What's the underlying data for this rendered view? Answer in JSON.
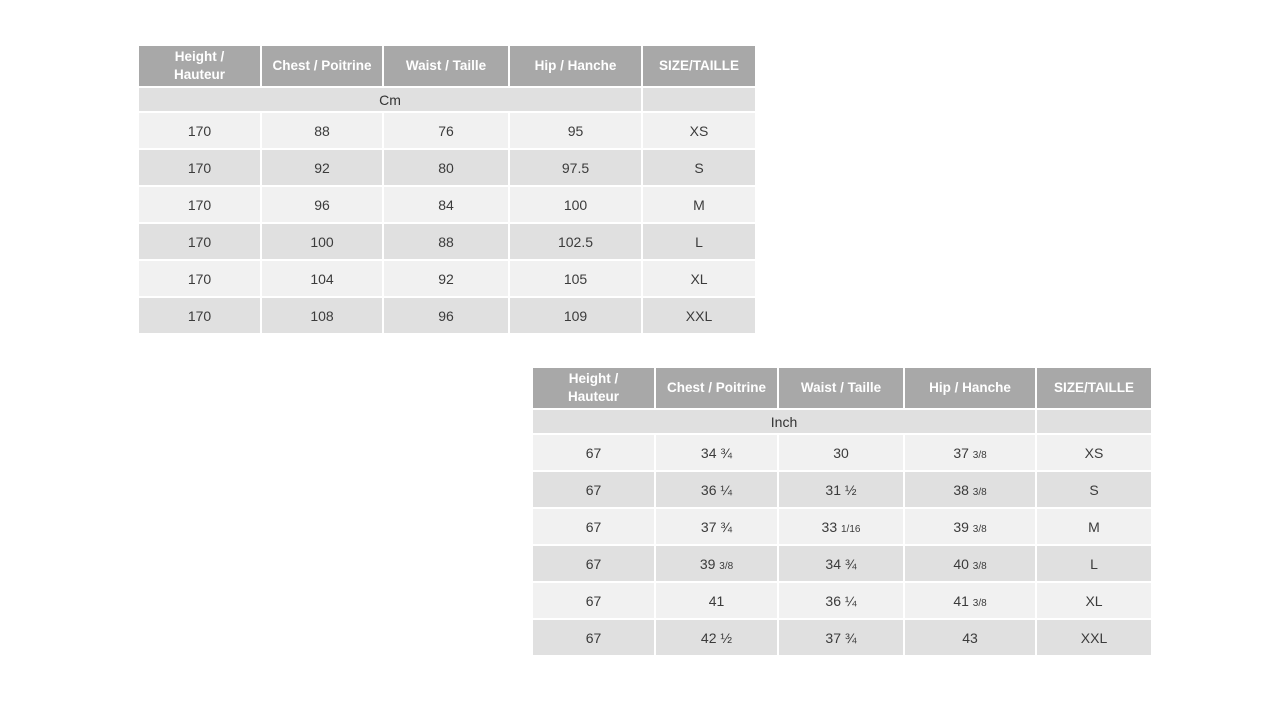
{
  "colors": {
    "header_bg": "#a8a8a8",
    "header_text": "#ffffff",
    "row_light": "#f1f1f1",
    "row_dark": "#e0e0e0",
    "cell_border": "#ffffff",
    "body_text": "#3b3b3b",
    "page_bg": "#ffffff"
  },
  "tables": [
    {
      "id": "cm-size-chart",
      "columns": [
        "Height /\nHauteur",
        "Chest / Poitrine",
        "Waist / Taille",
        "Hip / Hanche",
        "SIZE/TAILLE"
      ],
      "unit_label": "Cm",
      "rows": [
        [
          "170",
          "88",
          "76",
          "95",
          "XS"
        ],
        [
          "170",
          "92",
          "80",
          "97.5",
          "S"
        ],
        [
          "170",
          "96",
          "84",
          "100",
          "M"
        ],
        [
          "170",
          "100",
          "88",
          "102.5",
          "L"
        ],
        [
          "170",
          "104",
          "92",
          "105",
          "XL"
        ],
        [
          "170",
          "108",
          "96",
          "109",
          "XXL"
        ]
      ]
    },
    {
      "id": "inch-size-chart",
      "columns": [
        "Height /\nHauteur",
        "Chest / Poitrine",
        "Waist / Taille",
        "Hip / Hanche",
        "SIZE/TAILLE"
      ],
      "unit_label": "Inch",
      "rows": [
        [
          "67",
          "34 ¾",
          "30",
          "37 3/8",
          "XS"
        ],
        [
          "67",
          "36 ¼",
          "31 ½",
          "38 3/8",
          "S"
        ],
        [
          "67",
          "37 ¾",
          "33 1/16",
          "39 3/8",
          "M"
        ],
        [
          "67",
          "39 3/8",
          "34 ¾",
          "40 3/8",
          "L"
        ],
        [
          "67",
          "41",
          "36 ¼",
          "41 3/8",
          "XL"
        ],
        [
          "67",
          "42 ½",
          "37 ¾",
          "43",
          "XXL"
        ]
      ]
    }
  ]
}
